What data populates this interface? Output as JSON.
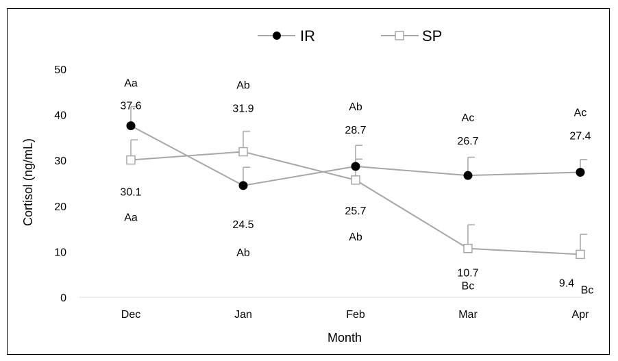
{
  "chart_data": {
    "type": "line",
    "xlabel": "Month",
    "ylabel": "Cortisol (ng/mL)",
    "categories": [
      "Dec",
      "Jan",
      "Feb",
      "Mar",
      "Apr"
    ],
    "ylim": [
      0,
      50
    ],
    "yticks": [
      "0",
      "10",
      "20",
      "30",
      "40",
      "50"
    ],
    "grid": false,
    "legend_position": "top-center",
    "series": [
      {
        "name": "IR",
        "marker": "filled-circle",
        "line_color": "#a6a6a6",
        "marker_color": "#000000",
        "values": [
          37.6,
          24.5,
          28.7,
          26.7,
          27.4
        ],
        "error": [
          4.2,
          4.0,
          4.6,
          4.0,
          2.8
        ],
        "value_labels": [
          "37.6",
          "24.5",
          "28.7",
          "26.7",
          "27.4"
        ],
        "letter_labels": [
          "Aa",
          "Ab",
          "Ab",
          "Ac",
          "Ac"
        ]
      },
      {
        "name": "SP",
        "marker": "open-square",
        "line_color": "#a6a6a6",
        "marker_color": "#a6a6a6",
        "values": [
          30.1,
          31.9,
          25.7,
          10.7,
          9.4
        ],
        "error": [
          4.4,
          4.5,
          4.6,
          5.2,
          4.4
        ],
        "value_labels": [
          "30.1",
          "31.9",
          "25.7",
          "10.7",
          "9.4"
        ],
        "letter_labels": [
          "Aa",
          "Ab",
          "Ab",
          "Bc",
          "Bc"
        ]
      }
    ]
  }
}
